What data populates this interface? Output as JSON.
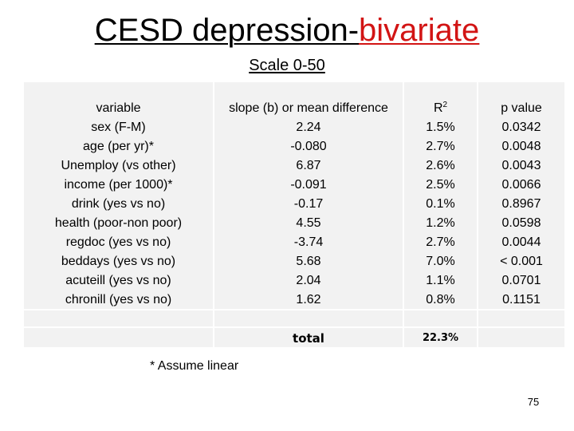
{
  "title": {
    "main": "CESD depression-",
    "accent": "bivariate"
  },
  "subtitle": "Scale 0-50",
  "table": {
    "headers": {
      "variable": "variable",
      "slope": "slope (b) or mean difference",
      "r2_base": "R",
      "r2_sup": "2",
      "pvalue": "p value"
    },
    "rows": [
      {
        "variable": "sex (F-M)",
        "slope": "2.24",
        "r2": "1.5%",
        "p": "0.0342"
      },
      {
        "variable": "age (per yr)*",
        "slope": "-0.080",
        "r2": "2.7%",
        "p": "0.0048"
      },
      {
        "variable": "Unemploy (vs other)",
        "slope": "6.87",
        "r2": "2.6%",
        "p": "0.0043"
      },
      {
        "variable": "income (per 1000)*",
        "slope": "-0.091",
        "r2": "2.5%",
        "p": "0.0066"
      },
      {
        "variable": "drink (yes vs no)",
        "slope": "-0.17",
        "r2": "0.1%",
        "p": "0.8967"
      },
      {
        "variable": "health (poor-non poor)",
        "slope": "4.55",
        "r2": "1.2%",
        "p": "0.0598"
      },
      {
        "variable": "regdoc (yes vs no)",
        "slope": "-3.74",
        "r2": "2.7%",
        "p": "0.0044"
      },
      {
        "variable": "beddays (yes vs no)",
        "slope": "5.68",
        "r2": "7.0%",
        "p": "< 0.001"
      },
      {
        "variable": "acuteill (yes vs no)",
        "slope": "2.04",
        "r2": "1.1%",
        "p": "0.0701"
      },
      {
        "variable": "chronill (yes vs no)",
        "slope": "1.62",
        "r2": "0.8%",
        "p": "0.1151"
      }
    ],
    "total_label": "total",
    "total_value": "22.3%"
  },
  "footnote": "* Assume linear",
  "page_number": "75",
  "colors": {
    "accent": "#d21414",
    "cell_bg": "#f2f2f2"
  }
}
